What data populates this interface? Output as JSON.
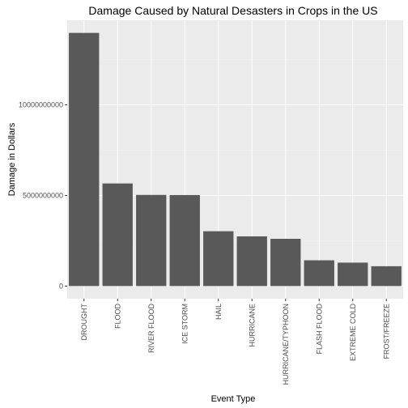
{
  "colors": {
    "panel_bg": "#ebebeb",
    "grid_major": "#ffffff",
    "grid_minor": "#f2f2f2",
    "bar_fill": "#595959",
    "tick_text": "#4d4d4d"
  },
  "chart_data": {
    "type": "bar",
    "title": "Damage Caused by Natural Desasters in Crops in the US",
    "xlabel": "Event Type",
    "ylabel": "Damage in Dollars",
    "categories": [
      "DROUGHT",
      "FLOOD",
      "RIVER FLOOD",
      "ICE STORM",
      "HAIL",
      "HURRICANE",
      "HURRICANE/TYPHOON",
      "FLASH FLOOD",
      "EXTREME COLD",
      "FROST/FREEZE"
    ],
    "values": [
      13972566000,
      5661968450,
      5029459000,
      5022113500,
      3025954473,
      2741910000,
      2607872800,
      1421317100,
      1292973000,
      1094086000
    ],
    "yticks": [
      0,
      5000000000,
      10000000000
    ],
    "ytick_labels": [
      "0",
      "5000000000",
      "10000000000"
    ],
    "ylim": [
      -698628300,
      14671194300
    ],
    "grid": true
  }
}
